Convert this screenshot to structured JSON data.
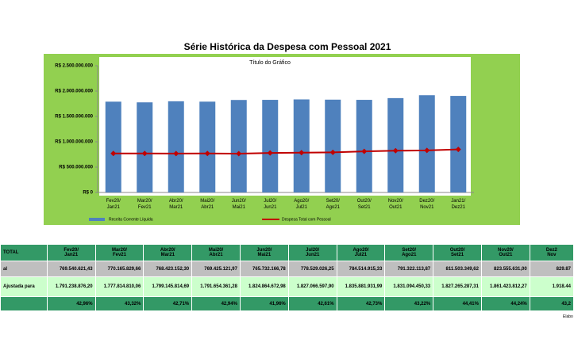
{
  "chart_data": {
    "type": "bar",
    "title": "Série Histórica da Despesa com Pessoal 2021",
    "subtitle": "Título do Gráfico",
    "categories": [
      "Fev20/\nJan21",
      "Mar20/\nFev21",
      "Abr20/\nMar21",
      "Mai20/\nAbr21",
      "Jun20/\nMai21",
      "Jul20/\nJun21",
      "Ago20/\nJul21",
      "Set20/\nAgo21",
      "Out20/\nSet21",
      "Nov20/\nOut21",
      "Dez20/\nNov21",
      "Jan21/\nDez21"
    ],
    "series": [
      {
        "name": "Receita Corrente Líquida",
        "type": "bar",
        "color": "#4f81bd",
        "values": [
          1791238876.2,
          1777814810.06,
          1799145814.69,
          1791654361.28,
          1824864672.98,
          1827066597.9,
          1835881931.99,
          1831094450.33,
          1827265287.31,
          1861423812.27,
          1918440000,
          1905000000
        ]
      },
      {
        "name": "Despesa Total com Pessoal",
        "type": "line",
        "color": "#c00000",
        "values": [
          769540621.43,
          770165829.66,
          768423152.3,
          769425121.97,
          765732166.78,
          778529026.25,
          784514915.33,
          791322113.87,
          811503349.62,
          823555631.0,
          829870000,
          850000000
        ]
      }
    ],
    "ylim": [
      0,
      2500000000
    ],
    "yticks": [
      {
        "value": 0,
        "label": "R$ 0"
      },
      {
        "value": 500000000,
        "label": "R$ 500.000.000"
      },
      {
        "value": 1000000000,
        "label": "R$ 1.000.000.000"
      },
      {
        "value": 1500000000,
        "label": "R$ 1.500.000.000"
      },
      {
        "value": 2000000000,
        "label": "R$ 2.000.000.000"
      },
      {
        "value": 2500000000,
        "label": "R$ 2.500.000.000"
      }
    ],
    "legend": "bottom"
  },
  "table": {
    "header": [
      "TOTAL",
      "Fev20/\nJan21",
      "Mar20/\nFev21",
      "Abr20/\nMar21",
      "Mai20/\nAbr21",
      "Jun20/\nMai21",
      "Jul20/\nJun21",
      "Ago20/\nJul21",
      "Set20/\nAgo21",
      "Out20/\nSet21",
      "Nov20/\nOut21",
      "Dez2\nNov"
    ],
    "rows": [
      [
        "al",
        "769.540.621,43",
        "770.165.829,66",
        "768.423.152,30",
        "769.425.121,97",
        "765.732.166,78",
        "778.529.026,25",
        "784.514.915,33",
        "791.322.113,87",
        "811.503.349,62",
        "823.555.631,00",
        "829.87"
      ],
      [
        "Ajustada para",
        "1.791.238.876,20",
        "1.777.814.810,06",
        "1.799.145.814,69",
        "1.791.654.361,28",
        "1.824.864.672,98",
        "1.827.066.597,90",
        "1.835.881.931,99",
        "1.831.094.450,33",
        "1.827.265.287,31",
        "1.861.423.812,27",
        "1.918.44"
      ],
      [
        null,
        "42,96%",
        "43,32%",
        "42,71%",
        "42,94%",
        "41,96%",
        "42,61%",
        "42,73%",
        "43,22%",
        "44,41%",
        "44,24%",
        "43,2"
      ]
    ],
    "note": "Elabo"
  }
}
